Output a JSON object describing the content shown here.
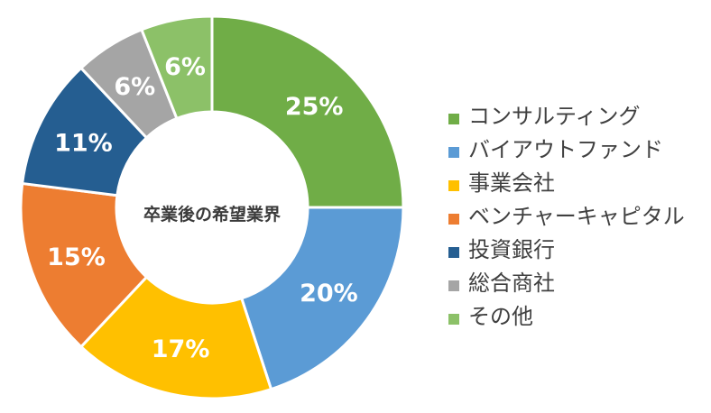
{
  "chart_data": {
    "type": "pie",
    "title": "卒業後の希望業界",
    "categories": [
      "コンサルティング",
      "バイアウトファンド",
      "事業会社",
      "ベンチャーキャピタル",
      "投資銀行",
      "総合商社",
      "その他"
    ],
    "values": [
      25,
      20,
      17,
      15,
      11,
      6,
      6
    ],
    "value_labels": [
      "25%",
      "20%",
      "17%",
      "15%",
      "11%",
      "6%",
      "6%"
    ],
    "colors": [
      "#70ad47",
      "#5b9bd5",
      "#ffc000",
      "#ed7d31",
      "#255e91",
      "#a5a5a5",
      "#8cc168"
    ],
    "donut": true,
    "legend_position": "right"
  }
}
